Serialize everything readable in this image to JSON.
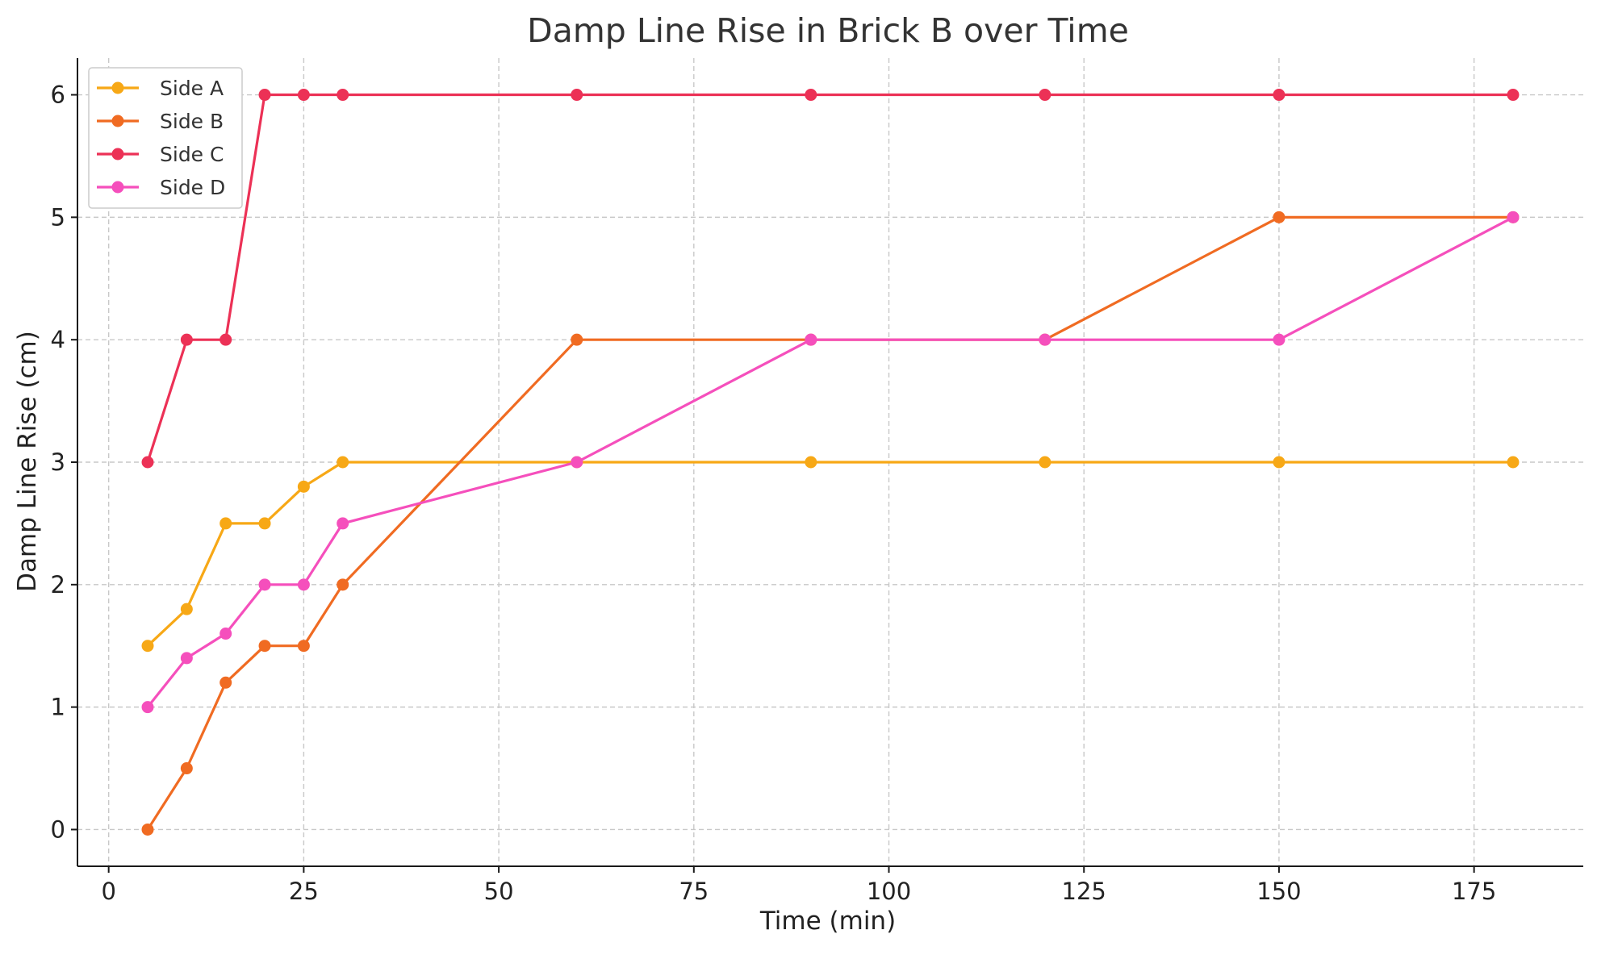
{
  "chart_data": {
    "type": "line",
    "title": "Damp Line Rise in Brick B over Time",
    "xlabel": "Time (min)",
    "ylabel": "Damp Line Rise (cm)",
    "x": [
      5,
      10,
      15,
      20,
      25,
      30,
      60,
      90,
      120,
      150,
      180
    ],
    "xlim": [
      -4,
      189
    ],
    "ylim": [
      -0.3,
      6.3
    ],
    "xticks": [
      0,
      25,
      50,
      75,
      100,
      125,
      150,
      175
    ],
    "yticks": [
      0,
      1,
      2,
      3,
      4,
      5,
      6
    ],
    "grid": true,
    "legend_position": "top-left",
    "series": [
      {
        "name": "Side A",
        "color": "#f7a816",
        "values": [
          1.5,
          1.8,
          2.5,
          2.5,
          2.8,
          3,
          3,
          3,
          3,
          3,
          3
        ]
      },
      {
        "name": "Side B",
        "color": "#f06b22",
        "values": [
          0,
          0.5,
          1.2,
          1.5,
          1.5,
          2,
          4,
          4,
          4,
          5,
          5
        ]
      },
      {
        "name": "Side C",
        "color": "#ec3156",
        "values": [
          3,
          4,
          4,
          6,
          6,
          6,
          6,
          6,
          6,
          6,
          6
        ]
      },
      {
        "name": "Side D",
        "color": "#f54fbc",
        "values": [
          1,
          1.4,
          1.6,
          2,
          2,
          2.5,
          3,
          4,
          4,
          4,
          5
        ]
      }
    ]
  }
}
